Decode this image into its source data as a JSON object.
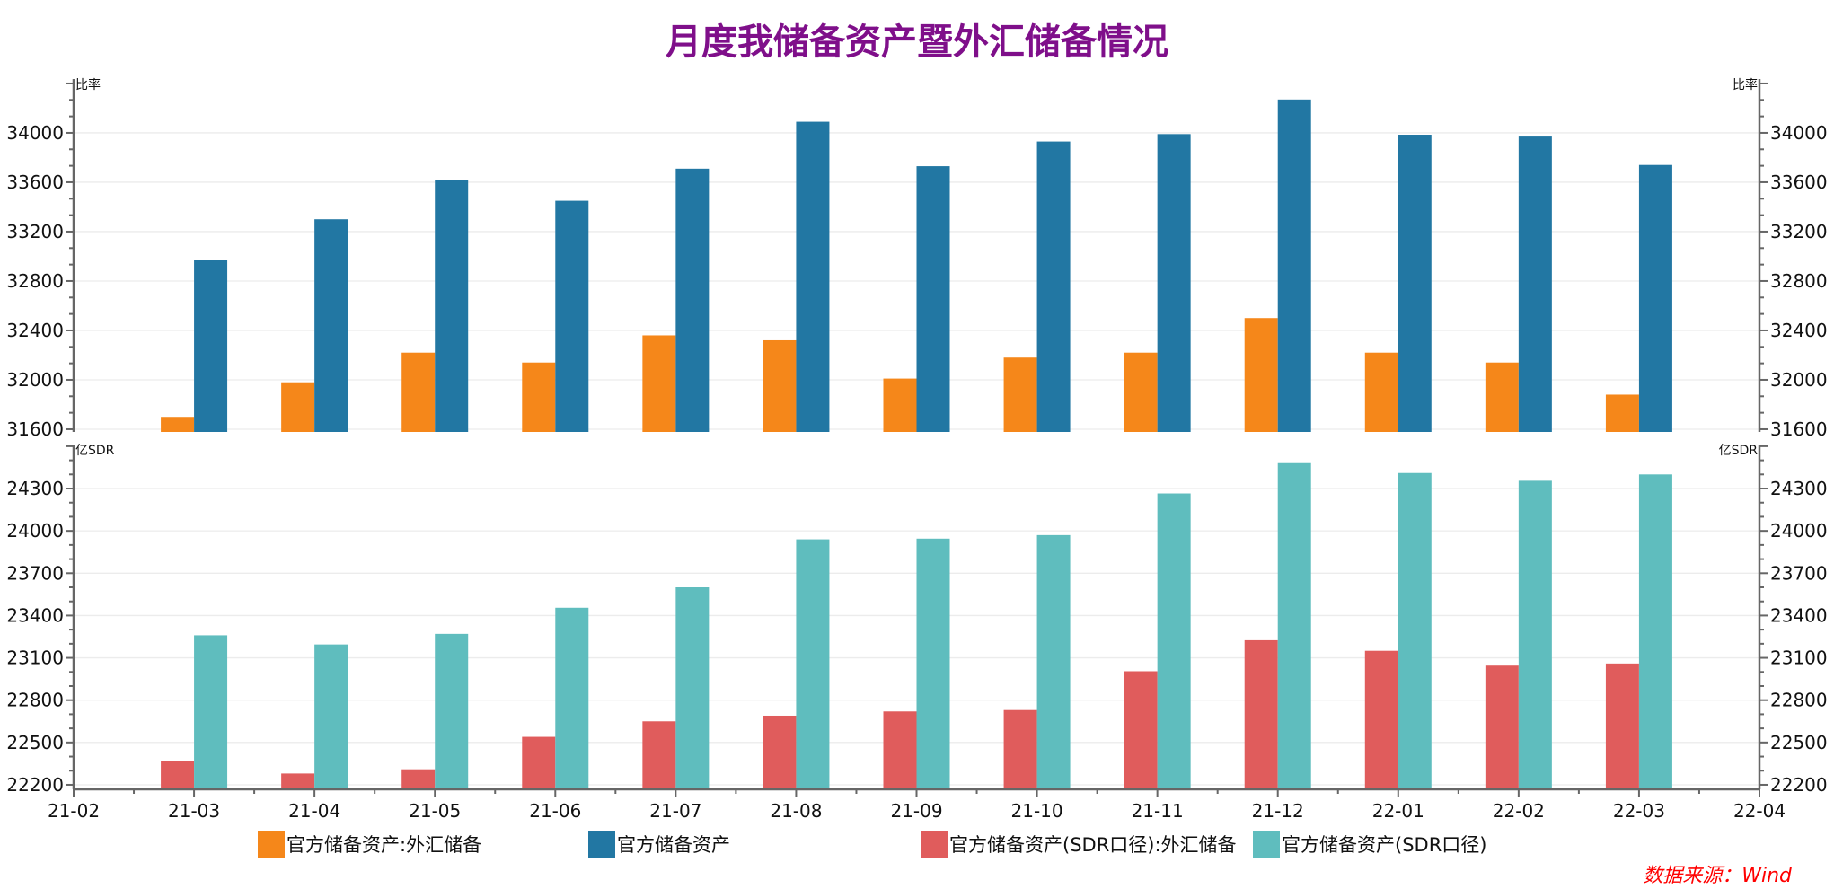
{
  "chart_data": [
    {
      "type": "bar",
      "title": "月度我储备资产暨外汇储备情况",
      "ylabel_left": "比率",
      "ylabel_right": "比率",
      "ylim": [
        31578,
        34436
      ],
      "yticks": [
        31600,
        32000,
        32400,
        32800,
        33200,
        33600,
        34000
      ],
      "categories": [
        "21-03",
        "21-04",
        "21-05",
        "21-06",
        "21-07",
        "21-08",
        "21-09",
        "21-10",
        "21-11",
        "21-12",
        "22-01",
        "22-02",
        "22-03"
      ],
      "series": [
        {
          "name": "官方储备资产:外汇储备",
          "color": "#f5871a",
          "values": [
            31700,
            31980,
            32220,
            32140,
            32360,
            32320,
            32010,
            32180,
            32220,
            32500,
            32220,
            32140,
            31880
          ]
        },
        {
          "name": "官方储备资产",
          "color": "#2277a3",
          "values": [
            32970,
            33300,
            33620,
            33450,
            33710,
            34090,
            33730,
            33930,
            33990,
            34270,
            33985,
            33970,
            33740
          ]
        }
      ],
      "grid": true
    },
    {
      "type": "bar",
      "ylabel_left": "亿SDR",
      "ylabel_right": "亿SDR",
      "ylim": [
        22168,
        24612
      ],
      "yticks": [
        22200,
        22500,
        22800,
        23100,
        23400,
        23700,
        24000,
        24300
      ],
      "x_axis_ticks": [
        "21-02",
        "21-03",
        "21-04",
        "21-05",
        "21-06",
        "21-07",
        "21-08",
        "21-09",
        "21-10",
        "21-11",
        "21-12",
        "22-01",
        "22-02",
        "22-03",
        "22-04"
      ],
      "categories": [
        "21-03",
        "21-04",
        "21-05",
        "21-06",
        "21-07",
        "21-08",
        "21-09",
        "21-10",
        "21-11",
        "21-12",
        "22-01",
        "22-02",
        "22-03"
      ],
      "series": [
        {
          "name": "官方储备资产(SDR口径):外汇储备",
          "color": "#e05c5c",
          "values": [
            22370,
            22280,
            22310,
            22540,
            22650,
            22690,
            22720,
            22730,
            23005,
            23225,
            23150,
            23045,
            23060
          ]
        },
        {
          "name": "官方储备资产(SDR口径)",
          "color": "#5fbdbe",
          "values": [
            23260,
            23195,
            23270,
            23455,
            23600,
            23940,
            23945,
            23970,
            24265,
            24480,
            24410,
            24355,
            24400
          ]
        }
      ],
      "grid": true
    }
  ],
  "source": "数据来源：Wind"
}
